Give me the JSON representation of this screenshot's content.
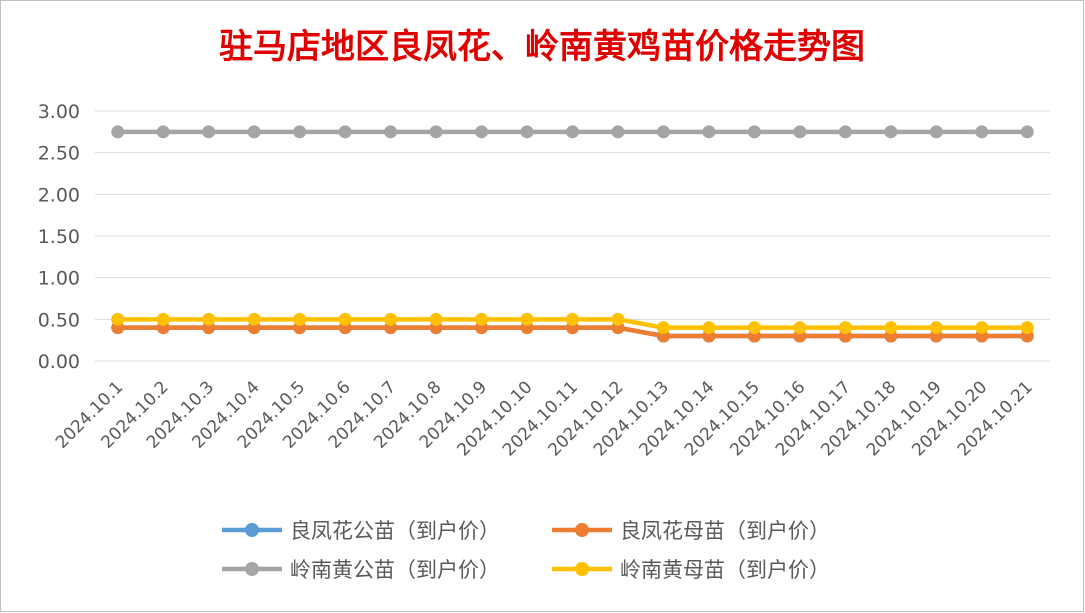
{
  "chart_data": {
    "type": "line",
    "title": "驻马店地区良凤花、岭南黄鸡苗价格走势图",
    "xlabel": "",
    "ylabel": "",
    "ylim": [
      0,
      3
    ],
    "yticks": [
      "3.00",
      "2.50",
      "2.00",
      "1.50",
      "1.00",
      "0.50",
      "0.00"
    ],
    "grid": true,
    "legend_position": "bottom",
    "categories": [
      "2024.10.1",
      "2024.10.2",
      "2024.10.3",
      "2024.10.4",
      "2024.10.5",
      "2024.10.6",
      "2024.10.7",
      "2024.10.8",
      "2024.10.9",
      "2024.10.10",
      "2024.10.11",
      "2024.10.12",
      "2024.10.13",
      "2024.10.14",
      "2024.10.15",
      "2024.10.16",
      "2024.10.17",
      "2024.10.18",
      "2024.10.19",
      "2024.10.20",
      "2024.10.21"
    ],
    "series": [
      {
        "name": "良凤花公苗（到户价）",
        "color": "#5b9bd5",
        "values": [
          0.4,
          0.4,
          0.4,
          0.4,
          0.4,
          0.4,
          0.4,
          0.4,
          0.4,
          0.4,
          0.4,
          0.4,
          0.3,
          0.3,
          0.3,
          0.3,
          0.3,
          0.3,
          0.3,
          0.3,
          0.3
        ]
      },
      {
        "name": "良凤花母苗（到户价）",
        "color": "#ed7d31",
        "values": [
          0.4,
          0.4,
          0.4,
          0.4,
          0.4,
          0.4,
          0.4,
          0.4,
          0.4,
          0.4,
          0.4,
          0.4,
          0.3,
          0.3,
          0.3,
          0.3,
          0.3,
          0.3,
          0.3,
          0.3,
          0.3
        ]
      },
      {
        "name": "岭南黄公苗（到户价）",
        "color": "#a5a5a5",
        "values": [
          2.75,
          2.75,
          2.75,
          2.75,
          2.75,
          2.75,
          2.75,
          2.75,
          2.75,
          2.75,
          2.75,
          2.75,
          2.75,
          2.75,
          2.75,
          2.75,
          2.75,
          2.75,
          2.75,
          2.75,
          2.75
        ]
      },
      {
        "name": "岭南黄母苗（到户价）",
        "color": "#ffc000",
        "values": [
          0.5,
          0.5,
          0.5,
          0.5,
          0.5,
          0.5,
          0.5,
          0.5,
          0.5,
          0.5,
          0.5,
          0.5,
          0.4,
          0.4,
          0.4,
          0.4,
          0.4,
          0.4,
          0.4,
          0.4,
          0.4
        ]
      }
    ]
  }
}
